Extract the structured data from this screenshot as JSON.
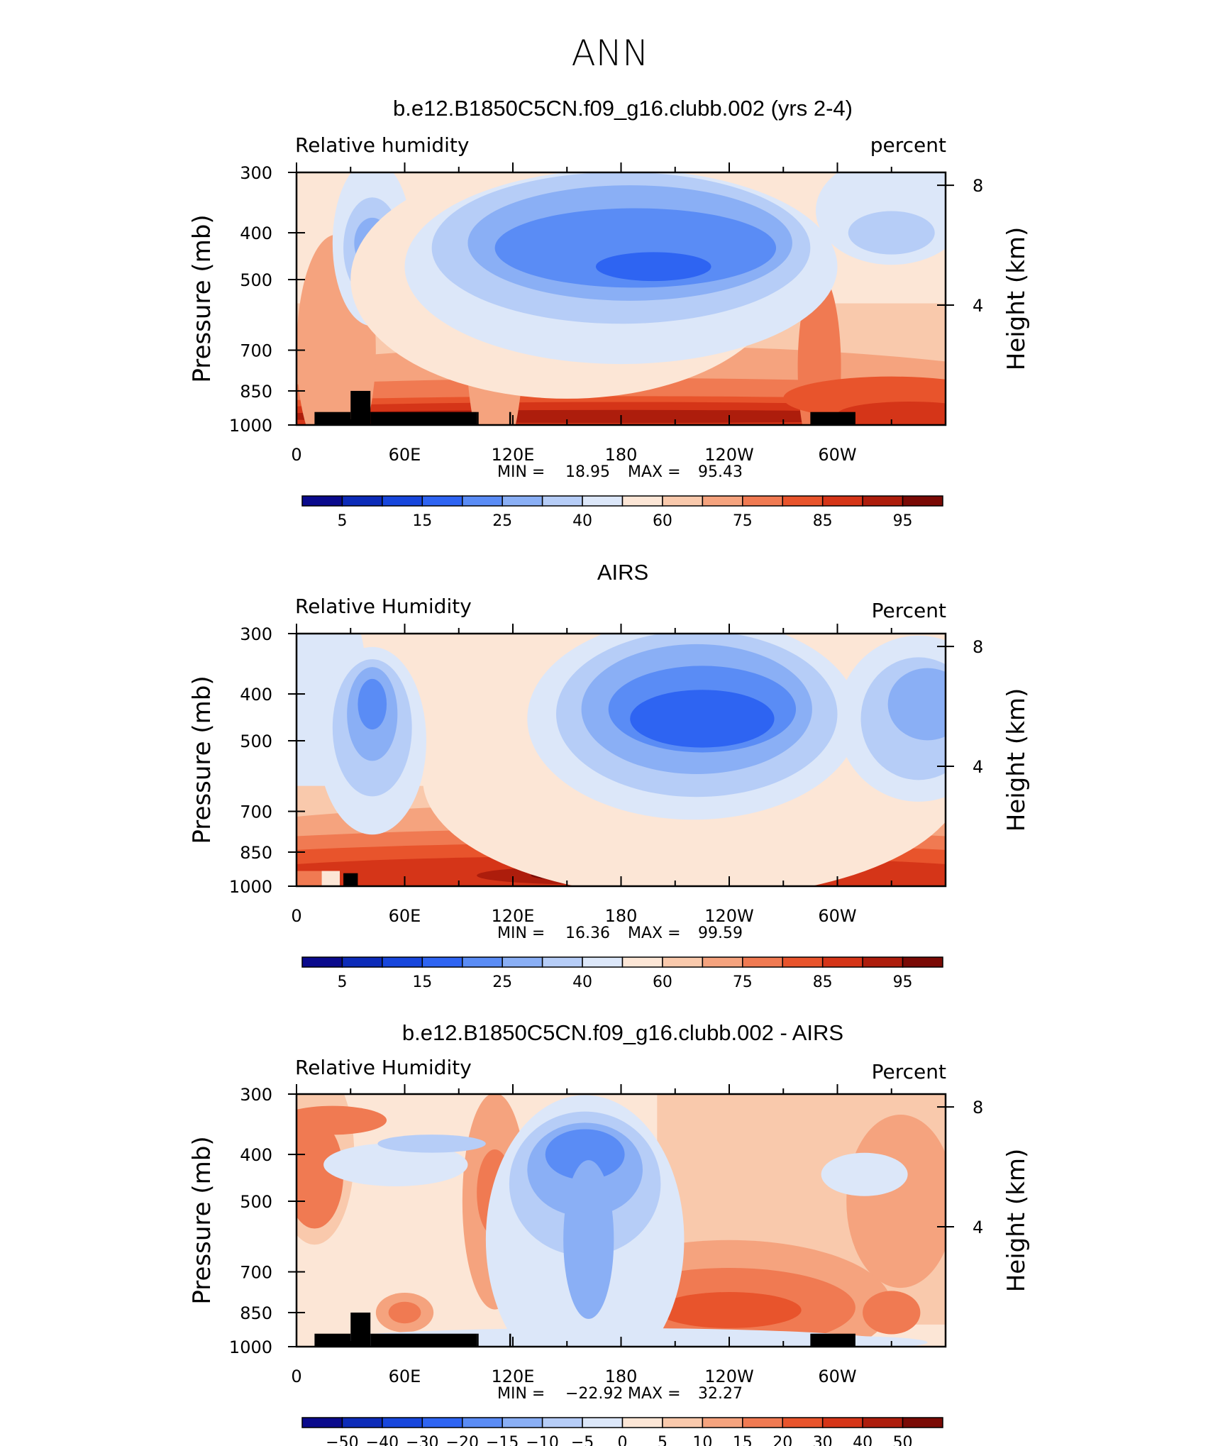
{
  "page_title": "ANN",
  "chart_data": [
    {
      "type": "heatmap",
      "title": "b.e12.B1850C5CN.f09_g16.clubb.002 (yrs 2-4)",
      "left_label": "Relative humidity",
      "right_label": "percent",
      "ylabel": "Pressure (mb)",
      "ylabel_right": "Height (km)",
      "y_ticks": [
        "300",
        "400",
        "500",
        "700",
        "850",
        "1000"
      ],
      "y_ticks_right": [
        "8",
        "4"
      ],
      "x_ticks": [
        "0",
        "60E",
        "120E",
        "180",
        "120W",
        "60W"
      ],
      "stats": {
        "min_label": "MIN =",
        "min": "18.95",
        "max_label": "MAX =",
        "max": "95.43"
      },
      "colorbar_labels": [
        "5",
        "15",
        "25",
        "40",
        "60",
        "75",
        "85",
        "95"
      ],
      "colors": [
        "#0a0a8c",
        "#0c2bb8",
        "#1746dc",
        "#2e64f2",
        "#5a8cf5",
        "#8aaff5",
        "#b6cdf7",
        "#dce7f9",
        "#fce6d6",
        "#f9c9ac",
        "#f5a37e",
        "#f07a52",
        "#e8542c",
        "#d53518",
        "#ad1d0c",
        "#7a0a05"
      ],
      "blobs": [
        {
          "x": 42,
          "y": 400,
          "rx": 10,
          "ry": 95,
          "color": "#8aaff5"
        },
        {
          "x": 42,
          "y": 410,
          "rx": 6,
          "ry": 55,
          "color": "#5a8cf5"
        },
        {
          "x": 155,
          "y": 440,
          "rx": 72,
          "ry": 115,
          "color": "#b6cdf7"
        },
        {
          "x": 155,
          "y": 445,
          "rx": 62,
          "ry": 95,
          "color": "#8aaff5"
        },
        {
          "x": 150,
          "y": 440,
          "rx": 46,
          "ry": 70,
          "color": "#5a8cf5"
        },
        {
          "x": 148,
          "y": 455,
          "rx": 12,
          "ry": 28,
          "color": "#2e64f2"
        },
        {
          "x": 80,
          "y": 300,
          "rx": 370,
          "ry": 35,
          "color": "#f9c9ac"
        },
        {
          "x": 100,
          "y": 330,
          "rx": 16,
          "ry": 95,
          "color": "#f5a37e"
        },
        {
          "x": 200,
          "y": 280,
          "rx": 560,
          "ry": 22,
          "color": "#f5a37e"
        },
        {
          "x": 310,
          "y": 330,
          "rx": 10,
          "ry": 110,
          "color": "#f5a37e"
        },
        {
          "x": 200,
          "y": 230,
          "rx": 560,
          "ry": 35,
          "color": "#f9c9ac"
        },
        {
          "x": 200,
          "y": 520,
          "rx": 8,
          "ry": 180,
          "color": "#f9c9ac"
        }
      ],
      "bands": [
        {
          "top": [
            0,
            80,
            100,
            100,
            240,
            760,
            640,
            720,
            600,
            530,
            360
          ],
          "bot": [
            0,
            0,
            0,
            0,
            0,
            0,
            0,
            0,
            0,
            0,
            0
          ],
          "color": "#dce7f9"
        }
      ],
      "terrain": [
        [
          10,
          940
        ],
        [
          30,
          850
        ],
        [
          41,
          940
        ],
        [
          100,
          940
        ],
        [
          101,
          1000
        ],
        [
          118,
          940
        ],
        [
          119,
          1000
        ],
        [
          285,
          940
        ],
        [
          310,
          1000
        ]
      ]
    },
    {
      "type": "heatmap",
      "title": "AIRS",
      "left_label": "Relative Humidity",
      "right_label": "Percent",
      "ylabel": "Pressure (mb)",
      "ylabel_right": "Height (km)",
      "y_ticks": [
        "300",
        "400",
        "500",
        "700",
        "850",
        "1000"
      ],
      "y_ticks_right": [
        "8",
        "4"
      ],
      "x_ticks": [
        "0",
        "60E",
        "120E",
        "180",
        "120W",
        "60W"
      ],
      "stats": {
        "min_label": "MIN =",
        "min": "16.36",
        "max_label": "MAX =",
        "max": "99.59"
      },
      "colorbar_labels": [
        "5",
        "15",
        "25",
        "40",
        "60",
        "75",
        "85",
        "95"
      ],
      "colors": [
        "#0a0a8c",
        "#0c2bb8",
        "#1746dc",
        "#2e64f2",
        "#5a8cf5",
        "#8aaff5",
        "#b6cdf7",
        "#dce7f9",
        "#fce6d6",
        "#f9c9ac",
        "#f5a37e",
        "#f07a52",
        "#e8542c",
        "#d53518",
        "#ad1d0c",
        "#7a0a05"
      ],
      "terrain": [
        [
          26,
          940
        ],
        [
          34,
          1000
        ]
      ]
    },
    {
      "type": "heatmap",
      "title": "b.e12.B1850C5CN.f09_g16.clubb.002 - AIRS",
      "left_label": "Relative Humidity",
      "right_label": "Percent",
      "ylabel": "Pressure (mb)",
      "ylabel_right": "Height (km)",
      "y_ticks": [
        "300",
        "400",
        "500",
        "700",
        "850",
        "1000"
      ],
      "y_ticks_right": [
        "8",
        "4"
      ],
      "x_ticks": [
        "0",
        "60E",
        "120E",
        "180",
        "120W",
        "60W"
      ],
      "stats": {
        "min_label": "MIN =",
        "min": "−22.92",
        "max_label": "MAX =",
        "max": "32.27"
      },
      "colorbar_labels": [
        "−50",
        "−40",
        "−30",
        "−20",
        "−15",
        "−10",
        "−5",
        "0",
        "5",
        "10",
        "15",
        "20",
        "30",
        "40",
        "50"
      ],
      "colors": [
        "#0a0a8c",
        "#0c2bb8",
        "#1746dc",
        "#2e64f2",
        "#5a8cf5",
        "#8aaff5",
        "#b6cdf7",
        "#dce7f9",
        "#fce6d6",
        "#f9c9ac",
        "#f5a37e",
        "#f07a52",
        "#e8542c",
        "#d53518",
        "#ad1d0c",
        "#7a0a05"
      ],
      "terrain": [
        [
          10,
          940
        ],
        [
          30,
          850
        ],
        [
          41,
          940
        ],
        [
          100,
          940
        ],
        [
          101,
          1000
        ],
        [
          118,
          940
        ],
        [
          119,
          1000
        ],
        [
          285,
          940
        ],
        [
          310,
          1000
        ]
      ]
    }
  ]
}
